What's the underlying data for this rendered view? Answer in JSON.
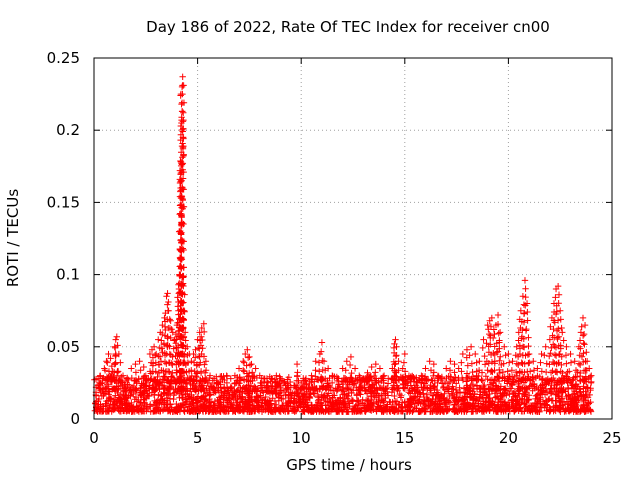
{
  "chart_data": {
    "type": "scatter",
    "title": "Day 186 of 2022, Rate Of TEC Index for receiver cn00",
    "xlabel": "GPS time / hours",
    "ylabel": "ROTI / TECUs",
    "xlim": [
      0,
      25
    ],
    "ylim": [
      0,
      0.25
    ],
    "grid": true,
    "x_ticks": [
      0,
      5,
      10,
      15,
      20,
      25
    ],
    "y_ticks": [
      0,
      0.05,
      0.1,
      0.15,
      0.2,
      0.25
    ],
    "x_tick_labels": [
      "0",
      "5",
      "10",
      "15",
      "20",
      "25"
    ],
    "y_tick_labels": [
      "0",
      "0.05",
      "0.1",
      "0.15",
      "0.2",
      "0.25"
    ],
    "marker": "+",
    "color": "#ff0000",
    "background_band": {
      "x_range": [
        0,
        24
      ],
      "y_range": [
        0.005,
        0.03
      ],
      "typical": 0.015
    },
    "series": [
      {
        "name": "ROTI",
        "points": [
          [
            0.1,
            0.022
          ],
          [
            0.2,
            0.028
          ],
          [
            0.3,
            0.03
          ],
          [
            0.5,
            0.035
          ],
          [
            0.6,
            0.04
          ],
          [
            0.7,
            0.045
          ],
          [
            0.8,
            0.042
          ],
          [
            0.9,
            0.033
          ],
          [
            1.0,
            0.05
          ],
          [
            1.05,
            0.055
          ],
          [
            1.1,
            0.057
          ],
          [
            1.2,
            0.045
          ],
          [
            1.4,
            0.03
          ],
          [
            1.6,
            0.028
          ],
          [
            1.8,
            0.035
          ],
          [
            2.0,
            0.038
          ],
          [
            2.2,
            0.04
          ],
          [
            2.4,
            0.036
          ],
          [
            2.5,
            0.03
          ],
          [
            2.7,
            0.045
          ],
          [
            2.8,
            0.048
          ],
          [
            2.9,
            0.05
          ],
          [
            3.0,
            0.045
          ],
          [
            3.1,
            0.055
          ],
          [
            3.2,
            0.06
          ],
          [
            3.3,
            0.065
          ],
          [
            3.4,
            0.07
          ],
          [
            3.5,
            0.085
          ],
          [
            3.55,
            0.087
          ],
          [
            3.6,
            0.075
          ],
          [
            3.7,
            0.068
          ],
          [
            3.8,
            0.06
          ],
          [
            3.9,
            0.055
          ],
          [
            4.0,
            0.065
          ],
          [
            4.05,
            0.078
          ],
          [
            4.1,
            0.09
          ],
          [
            4.12,
            0.1
          ],
          [
            4.15,
            0.117
          ],
          [
            4.18,
            0.16
          ],
          [
            4.2,
            0.178
          ],
          [
            4.22,
            0.205
          ],
          [
            4.23,
            0.209
          ],
          [
            4.25,
            0.23
          ],
          [
            4.27,
            0.231
          ],
          [
            4.28,
            0.237
          ],
          [
            4.3,
            0.098
          ],
          [
            4.35,
            0.075
          ],
          [
            4.4,
            0.06
          ],
          [
            4.5,
            0.05
          ],
          [
            4.6,
            0.045
          ],
          [
            4.7,
            0.04
          ],
          [
            4.8,
            0.045
          ],
          [
            4.9,
            0.048
          ],
          [
            5.0,
            0.055
          ],
          [
            5.1,
            0.06
          ],
          [
            5.2,
            0.063
          ],
          [
            5.3,
            0.066
          ],
          [
            5.4,
            0.04
          ],
          [
            5.6,
            0.03
          ],
          [
            5.8,
            0.028
          ],
          [
            6.0,
            0.025
          ],
          [
            6.2,
            0.027
          ],
          [
            6.4,
            0.03
          ],
          [
            6.6,
            0.028
          ],
          [
            6.8,
            0.03
          ],
          [
            7.0,
            0.035
          ],
          [
            7.2,
            0.04
          ],
          [
            7.3,
            0.045
          ],
          [
            7.4,
            0.048
          ],
          [
            7.5,
            0.043
          ],
          [
            7.6,
            0.038
          ],
          [
            7.8,
            0.035
          ],
          [
            8.0,
            0.03
          ],
          [
            8.2,
            0.028
          ],
          [
            8.4,
            0.025
          ],
          [
            8.6,
            0.028
          ],
          [
            8.8,
            0.03
          ],
          [
            9.0,
            0.028
          ],
          [
            9.2,
            0.025
          ],
          [
            9.5,
            0.022
          ],
          [
            9.8,
            0.038
          ],
          [
            10.0,
            0.025
          ],
          [
            10.2,
            0.027
          ],
          [
            10.5,
            0.03
          ],
          [
            10.7,
            0.04
          ],
          [
            10.9,
            0.045
          ],
          [
            11.0,
            0.053
          ],
          [
            11.1,
            0.04
          ],
          [
            11.3,
            0.035
          ],
          [
            11.5,
            0.03
          ],
          [
            11.8,
            0.028
          ],
          [
            12.0,
            0.035
          ],
          [
            12.2,
            0.04
          ],
          [
            12.4,
            0.043
          ],
          [
            12.6,
            0.035
          ],
          [
            12.8,
            0.03
          ],
          [
            13.0,
            0.028
          ],
          [
            13.2,
            0.032
          ],
          [
            13.4,
            0.036
          ],
          [
            13.6,
            0.038
          ],
          [
            13.8,
            0.035
          ],
          [
            14.0,
            0.03
          ],
          [
            14.2,
            0.028
          ],
          [
            14.4,
            0.035
          ],
          [
            14.5,
            0.052
          ],
          [
            14.55,
            0.055
          ],
          [
            14.6,
            0.05
          ],
          [
            14.7,
            0.04
          ],
          [
            14.9,
            0.035
          ],
          [
            15.0,
            0.045
          ],
          [
            15.2,
            0.03
          ],
          [
            15.4,
            0.028
          ],
          [
            15.6,
            0.025
          ],
          [
            15.8,
            0.03
          ],
          [
            16.0,
            0.035
          ],
          [
            16.2,
            0.04
          ],
          [
            16.4,
            0.038
          ],
          [
            16.6,
            0.03
          ],
          [
            16.8,
            0.028
          ],
          [
            17.0,
            0.035
          ],
          [
            17.2,
            0.04
          ],
          [
            17.4,
            0.038
          ],
          [
            17.6,
            0.035
          ],
          [
            17.8,
            0.045
          ],
          [
            18.0,
            0.048
          ],
          [
            18.2,
            0.05
          ],
          [
            18.4,
            0.045
          ],
          [
            18.6,
            0.04
          ],
          [
            18.8,
            0.055
          ],
          [
            19.0,
            0.065
          ],
          [
            19.1,
            0.068
          ],
          [
            19.2,
            0.07
          ],
          [
            19.3,
            0.062
          ],
          [
            19.4,
            0.065
          ],
          [
            19.5,
            0.072
          ],
          [
            19.6,
            0.06
          ],
          [
            19.8,
            0.05
          ],
          [
            20.0,
            0.045
          ],
          [
            20.2,
            0.04
          ],
          [
            20.4,
            0.05
          ],
          [
            20.5,
            0.06
          ],
          [
            20.6,
            0.075
          ],
          [
            20.7,
            0.085
          ],
          [
            20.8,
            0.096
          ],
          [
            20.9,
            0.08
          ],
          [
            21.0,
            0.045
          ],
          [
            21.2,
            0.04
          ],
          [
            21.4,
            0.035
          ],
          [
            21.6,
            0.045
          ],
          [
            21.8,
            0.05
          ],
          [
            22.0,
            0.055
          ],
          [
            22.1,
            0.07
          ],
          [
            22.2,
            0.08
          ],
          [
            22.3,
            0.09
          ],
          [
            22.4,
            0.092
          ],
          [
            22.5,
            0.075
          ],
          [
            22.6,
            0.06
          ],
          [
            22.8,
            0.05
          ],
          [
            23.0,
            0.045
          ],
          [
            23.2,
            0.04
          ],
          [
            23.4,
            0.05
          ],
          [
            23.5,
            0.06
          ],
          [
            23.6,
            0.07
          ],
          [
            23.7,
            0.065
          ],
          [
            23.8,
            0.04
          ],
          [
            23.9,
            0.035
          ],
          [
            24.0,
            0.03
          ]
        ]
      }
    ]
  }
}
